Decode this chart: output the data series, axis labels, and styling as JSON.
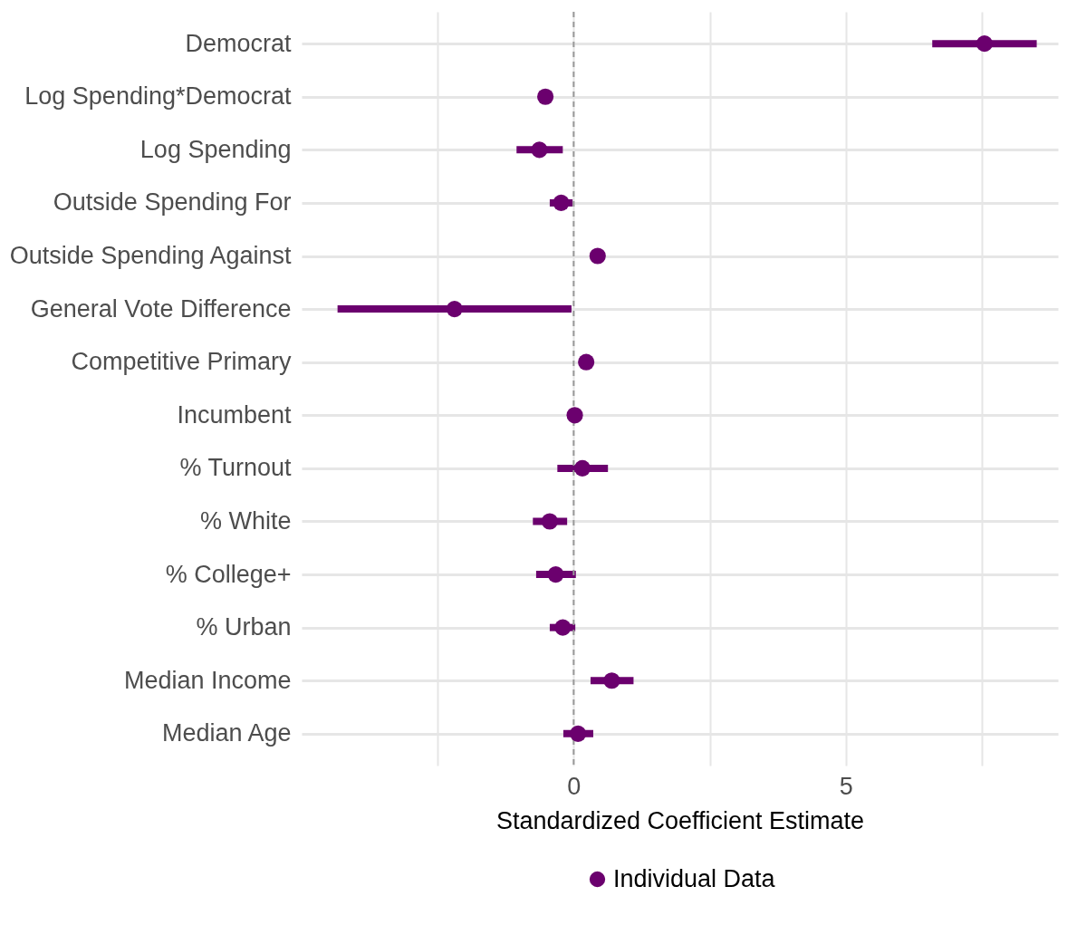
{
  "chart_data": {
    "type": "scatter",
    "orientation": "horizontal",
    "xlabel": "Standardized Coefficient Estimate",
    "categories": [
      "Democrat",
      "Log Spending*Democrat",
      "Log Spending",
      "Outside Spending For",
      "Outside Spending Against",
      "General Vote Difference",
      "Competitive Primary",
      "Incumbent",
      "% Turnout",
      "% White",
      "% College+",
      "% Urban",
      "Median Income",
      "Median Age"
    ],
    "series": [
      {
        "name": "Individual Data",
        "color": "#6b006e",
        "values": [
          7.55,
          -0.52,
          -0.63,
          -0.23,
          0.44,
          -2.19,
          0.23,
          0.02,
          0.16,
          -0.44,
          -0.33,
          -0.2,
          0.7,
          0.08
        ],
        "errors": [
          [
            6.59,
            8.51
          ],
          null,
          [
            -1.05,
            -0.2
          ],
          [
            -0.44,
            -0.02
          ],
          [
            0.31,
            0.56
          ],
          [
            -4.34,
            -0.04
          ],
          null,
          null,
          [
            -0.3,
            0.63
          ],
          [
            -0.75,
            -0.12
          ],
          [
            -0.69,
            0.04
          ],
          [
            -0.44,
            0.03
          ],
          [
            0.31,
            1.1
          ],
          [
            -0.19,
            0.36
          ]
        ]
      }
    ],
    "xlim": [
      -5,
      8.9
    ],
    "xticks": [
      {
        "value": -2.5,
        "label": null
      },
      0,
      {
        "value": 2.5,
        "label": null
      },
      5,
      {
        "value": 7.5,
        "label": null
      }
    ],
    "ref_lines": [
      {
        "axis": "x",
        "value": 0,
        "color": "#999999",
        "line_style": "dashed"
      }
    ],
    "grid": true,
    "legend": "bottom",
    "marker": "circle"
  }
}
